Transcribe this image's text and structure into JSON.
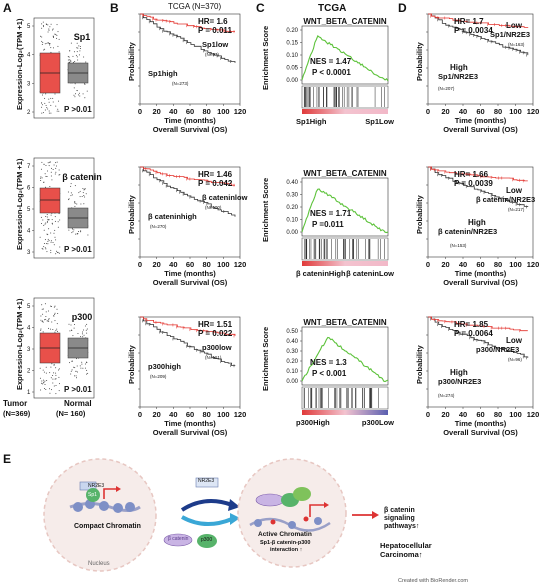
{
  "panels": {
    "a": "A",
    "b": "B",
    "c": "C",
    "d": "D",
    "e": "E"
  },
  "a": {
    "ylabel": "Expression-Log₂(TPM +1)",
    "rows": [
      {
        "gene": "Sp1",
        "p": "P >0.01"
      },
      {
        "gene": "β catenin",
        "p": "P >0.01"
      },
      {
        "gene": "p300",
        "p": "P >0.01"
      }
    ],
    "xlabels": [
      "Tumor",
      "(N=369)",
      "Normal",
      "(N= 160)"
    ],
    "yticks": [
      [
        "5",
        "4",
        "3",
        "2"
      ],
      [
        "7",
        "6",
        "5",
        "4",
        "3"
      ],
      [
        "5",
        "4",
        "3",
        "2",
        "1"
      ]
    ],
    "colors": {
      "tumor": "#e8504a",
      "normal": "#8a8a8a"
    }
  },
  "b": {
    "header": "TCGA (N=370)",
    "ylabel": "Probability",
    "xlabel": "Time (months)",
    "os": "Overall Survival (OS)",
    "xticks": [
      "0",
      "20",
      "40",
      "60",
      "80",
      "100",
      "120"
    ],
    "yticks": [
      "0.0",
      "0.2",
      "0.4",
      "0.6",
      "0.8",
      "1.0"
    ],
    "rows": [
      {
        "hr": "HR= 1.6",
        "p": "P = 0.011",
        "low": "Sp1low",
        "low_n": "(N=97)",
        "high": "Sp1high",
        "high_n": "(N=273)"
      },
      {
        "hr": "HR= 1.46",
        "p": "P = 0.042",
        "low": "β cateninlow",
        "low_n": "(N=100)",
        "high": "β cateninhigh",
        "high_n": "(N=270)"
      },
      {
        "hr": "HR= 1.51",
        "p": "P = 0.022",
        "low": "p300low",
        "low_n": "(N=161)",
        "high": "p300high",
        "high_n": "(N=209)"
      }
    ]
  },
  "c": {
    "header": "TCGA",
    "ylabel": "Enrichment Score",
    "rows": [
      {
        "title": "WNT_BETA_CATENIN",
        "nes": "NES = 1.47",
        "p": "P < 0.0001",
        "left": "Sp1High",
        "right": "Sp1Low",
        "yticks": [
          "0.20",
          "0.15",
          "0.10",
          "0.05",
          "0.00"
        ]
      },
      {
        "title": "WNT_BETA_CATENIN",
        "nes": "NES = 1.71",
        "p": "P =0.011",
        "left": "β cateninHigh",
        "right": "β cateninLow",
        "yticks": [
          "0.40",
          "0.30",
          "0.20",
          "0.10",
          "0.00"
        ]
      },
      {
        "title": "WNT_BETA_CATENIN",
        "nes": "NES = 1.3",
        "p": "P < 0.001",
        "left": "p300High",
        "right": "p300Low",
        "yticks": [
          "0.50",
          "0.40",
          "0.30",
          "0.20",
          "0.10",
          "0.00"
        ]
      }
    ],
    "colors": {
      "curve": "#5cc23a"
    }
  },
  "d": {
    "ylabel": "Probability",
    "xlabel": "Time (months)",
    "os": "Overall Survival (OS)",
    "rows": [
      {
        "hr": "HR= 1.7",
        "p": "P = 0.0034",
        "low": "Low",
        "low2": "Sp1/NR2E3",
        "low_n": "(N=163)",
        "high": "High",
        "high2": "Sp1/NR2E3",
        "high_n": "(N=207)"
      },
      {
        "hr": "HR= 1.66",
        "p": "P = 0.0039",
        "low": "Low",
        "low2": "β catenin/NR2E3",
        "low_n": "(N=217)",
        "high": "High",
        "high2": "β catenin/NR2E3",
        "high_n": "(N=153)"
      },
      {
        "hr": "HR= 1.85",
        "p": "P = 0.0064",
        "low": "Low",
        "low2": "p300/NR2E3",
        "low_n": "(N=96)",
        "high": "High",
        "high2": "p300/NR2E3",
        "high_n": "(N=274)"
      }
    ]
  },
  "e": {
    "nr2e3": "NR2E3",
    "sp1": "Sp1",
    "compact": "Compact  Chromatin",
    "nucleus": "Nucleus",
    "bcat": "β catenin",
    "p300": "p300",
    "active": "Active Chromatin",
    "interaction": "Sp1-β catenin-p300",
    "interaction2": "interaction ↑",
    "out1": "β catenin",
    "out2": "signaling",
    "out3": "pathways↑",
    "out4": "Hepatocellular",
    "out5": "Carcinoma↑",
    "credit": "Created with BioRender.com"
  }
}
